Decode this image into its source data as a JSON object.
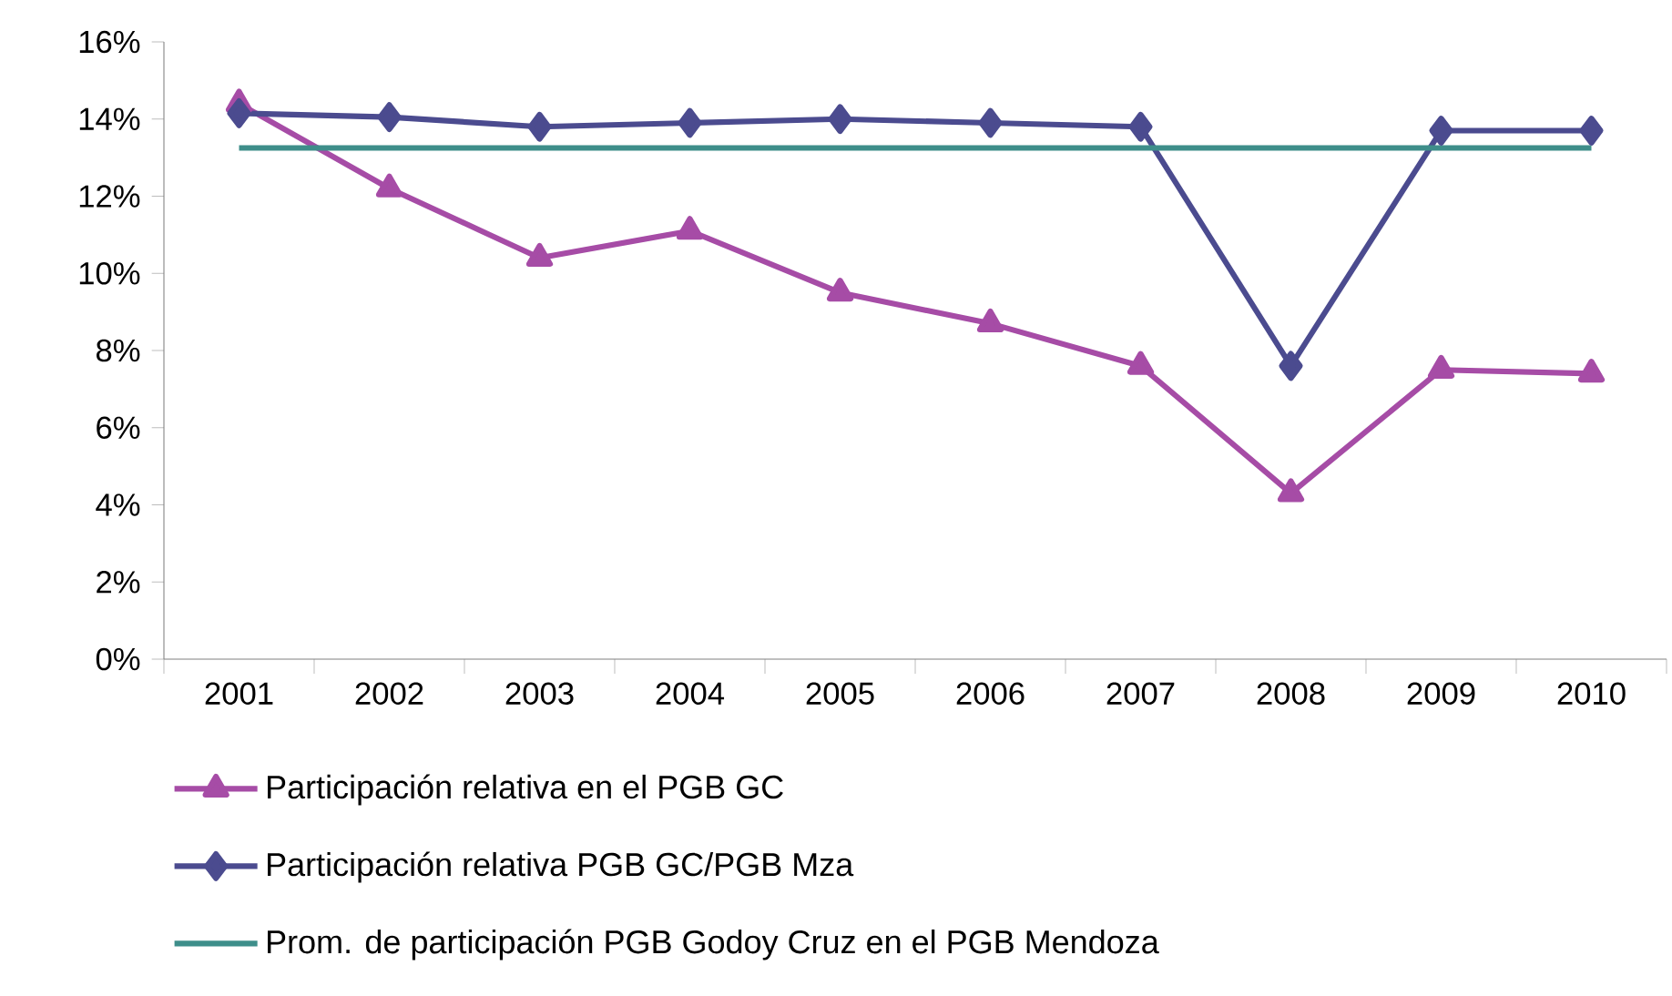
{
  "chart_data": {
    "type": "line",
    "categories": [
      "2001",
      "2002",
      "2003",
      "2004",
      "2005",
      "2006",
      "2007",
      "2008",
      "2009",
      "2010"
    ],
    "series": [
      {
        "name": "Participación relativa en el PGB GC",
        "color": "#a64ca6",
        "marker": "triangle",
        "values": [
          14.4,
          12.2,
          10.4,
          11.1,
          9.5,
          8.7,
          7.6,
          4.3,
          7.5,
          7.4
        ]
      },
      {
        "name": "Participación relativa PGB GC/PGB Mza",
        "color": "#4b4b8f",
        "marker": "diamond",
        "values": [
          14.15,
          14.05,
          13.8,
          13.9,
          14.0,
          13.9,
          13.8,
          7.6,
          13.7,
          13.7
        ]
      },
      {
        "name": "Prom. de participación PGB Godoy Cruz en el PGB Mendoza",
        "color": "#3e8e8a",
        "marker": "none",
        "values": [
          13.25,
          13.25,
          13.25,
          13.25,
          13.25,
          13.25,
          13.25,
          13.25,
          13.25,
          13.25
        ]
      }
    ],
    "ylim": [
      0,
      16
    ],
    "yticks": [
      {
        "value": 0,
        "label": "0%"
      },
      {
        "value": 2,
        "label": "2%"
      },
      {
        "value": 4,
        "label": "4%"
      },
      {
        "value": 6,
        "label": "6%"
      },
      {
        "value": 8,
        "label": "8%"
      },
      {
        "value": 10,
        "label": "10%"
      },
      {
        "value": 12,
        "label": "12%"
      },
      {
        "value": 14,
        "label": "14%"
      },
      {
        "value": 16,
        "label": "16%"
      }
    ],
    "grid": false,
    "legend": "bottom"
  }
}
